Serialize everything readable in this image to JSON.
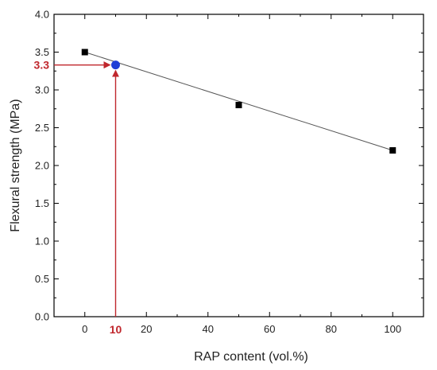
{
  "chart_data": {
    "type": "scatter",
    "title": "",
    "xlabel": "RAP content (vol.%)",
    "ylabel": "Flexural strength (MPa)",
    "xlim": [
      -10,
      110
    ],
    "ylim": [
      0,
      4
    ],
    "x_ticks": [
      0,
      20,
      40,
      60,
      80,
      100
    ],
    "y_ticks": [
      0.0,
      0.5,
      1.0,
      1.5,
      2.0,
      2.5,
      3.0,
      3.5,
      4.0
    ],
    "x_tick_labels": [
      "0",
      "20",
      "40",
      "60",
      "80",
      "100"
    ],
    "y_tick_labels": [
      "0.0",
      "0.5",
      "1.0",
      "1.5",
      "2.0",
      "2.5",
      "3.0",
      "3.5",
      "4.0"
    ],
    "grid": false,
    "series": [
      {
        "marker": "square",
        "color": "#000000",
        "points": [
          {
            "x": 0,
            "y": 3.5
          },
          {
            "x": 50,
            "y": 2.8
          },
          {
            "x": 100,
            "y": 2.2
          }
        ]
      }
    ],
    "fit_line": {
      "color": "#555555",
      "from": {
        "x": 0,
        "y": 3.5
      },
      "to": {
        "x": 100,
        "y": 2.2
      }
    },
    "highlight": {
      "x": 10,
      "y": 3.33,
      "color": "#1f3fd6",
      "x_label": "10",
      "y_label": "3.3",
      "arrow_color": "#c0272d"
    }
  }
}
